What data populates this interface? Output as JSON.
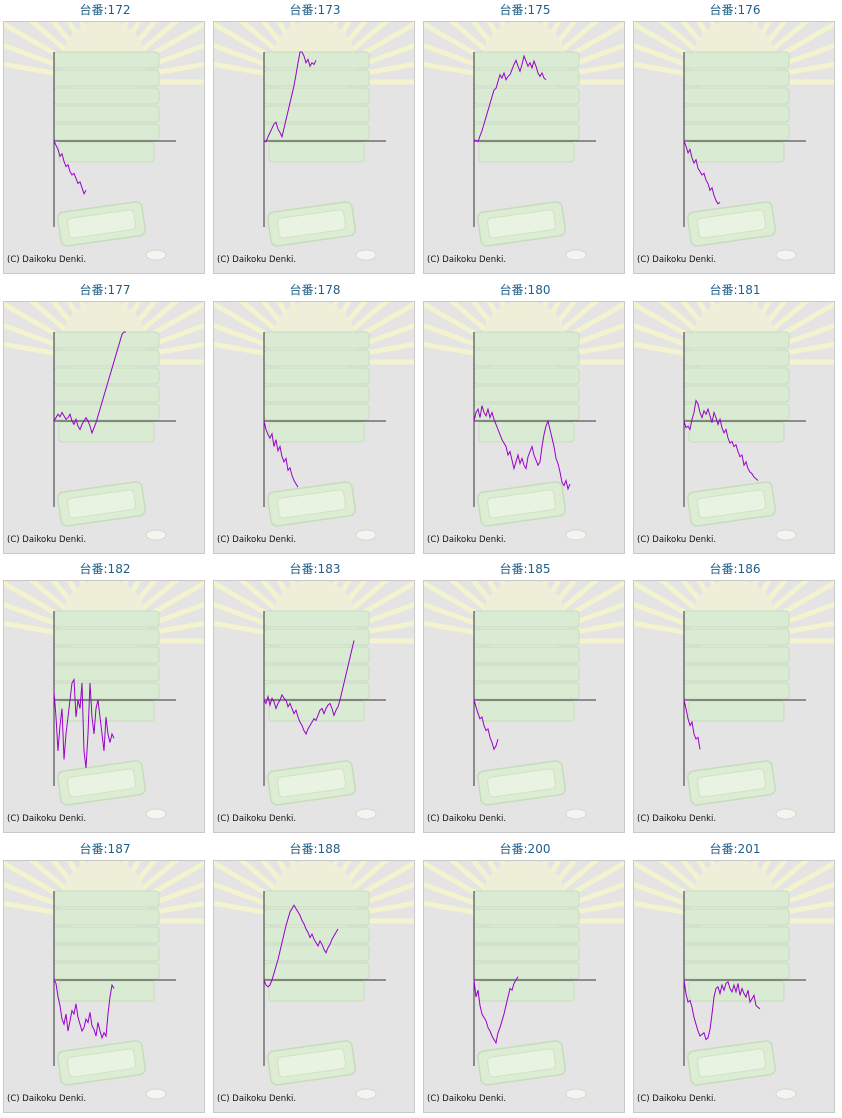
{
  "copyright": "(C) Daikoku Denki.",
  "title_prefix": "台番:",
  "colors": {
    "title": "#1f5f86",
    "line": "#9900cc",
    "axis": "#333333",
    "background": "#e4e4e4"
  },
  "chart_data": [
    {
      "type": "line",
      "title": "台番:172",
      "x": [
        0,
        1,
        2,
        3,
        4,
        5,
        6,
        7,
        8,
        9,
        10,
        11,
        12,
        13,
        14,
        15,
        16
      ],
      "y": [
        0,
        -5,
        -10,
        -18,
        -15,
        -24,
        -30,
        -28,
        -36,
        -40,
        -38,
        -44,
        -50,
        -48,
        -55,
        -62,
        -58
      ]
    },
    {
      "type": "line",
      "title": "台番:173",
      "x": [
        0,
        1,
        2,
        3,
        4,
        5,
        6,
        7,
        8,
        9,
        10,
        11,
        12,
        13,
        14,
        15,
        16,
        17,
        18,
        19,
        20,
        21,
        22,
        23,
        24,
        25,
        26
      ],
      "y": [
        0,
        -1,
        5,
        10,
        15,
        20,
        22,
        14,
        10,
        5,
        15,
        25,
        35,
        45,
        55,
        65,
        78,
        92,
        105,
        108,
        100,
        92,
        96,
        88,
        92,
        90,
        95
      ]
    },
    {
      "type": "line",
      "title": "台番:175",
      "x": [
        0,
        1,
        2,
        3,
        4,
        5,
        6,
        7,
        8,
        9,
        10,
        11,
        12,
        13,
        14,
        15,
        16,
        17,
        18,
        19,
        20,
        21,
        22,
        23,
        24,
        25,
        26,
        27,
        28,
        29,
        30,
        31,
        32,
        33,
        34,
        35,
        36
      ],
      "y": [
        0,
        1,
        -1,
        6,
        12,
        20,
        28,
        36,
        44,
        52,
        60,
        62,
        70,
        78,
        74,
        80,
        72,
        76,
        78,
        84,
        90,
        95,
        88,
        82,
        90,
        100,
        94,
        88,
        92,
        86,
        94,
        88,
        80,
        76,
        80,
        74,
        72
      ]
    },
    {
      "type": "line",
      "title": "台番:176",
      "x": [
        0,
        1,
        2,
        3,
        4,
        5,
        6,
        7,
        8,
        9,
        10,
        11,
        12,
        13,
        14,
        15,
        16,
        17,
        18
      ],
      "y": [
        0,
        -6,
        -14,
        -10,
        -20,
        -26,
        -22,
        -32,
        -36,
        -40,
        -38,
        -46,
        -50,
        -58,
        -55,
        -64,
        -70,
        -74,
        -72
      ]
    },
    {
      "type": "line",
      "title": "台番:177",
      "x": [
        0,
        1,
        2,
        3,
        4,
        5,
        6,
        7,
        8,
        9,
        10,
        11,
        12,
        13,
        14,
        15,
        16,
        17,
        18,
        19,
        20,
        21,
        22,
        23,
        24,
        25,
        26,
        27,
        28,
        29,
        30,
        31,
        32,
        33,
        34,
        35,
        36
      ],
      "y": [
        0,
        4,
        8,
        5,
        10,
        6,
        2,
        4,
        8,
        0,
        -4,
        2,
        -6,
        -10,
        -4,
        0,
        4,
        0,
        -6,
        -14,
        -8,
        -2,
        6,
        14,
        22,
        30,
        38,
        46,
        54,
        62,
        70,
        78,
        86,
        94,
        102,
        108,
        112
      ]
    },
    {
      "type": "line",
      "title": "台番:178",
      "x": [
        0,
        1,
        2,
        3,
        4,
        5,
        6,
        7,
        8,
        9,
        10,
        11,
        12,
        13,
        14,
        15,
        16,
        17
      ],
      "y": [
        0,
        -10,
        -16,
        -20,
        -15,
        -30,
        -22,
        -35,
        -30,
        -42,
        -48,
        -44,
        -58,
        -55,
        -64,
        -70,
        -74,
        -78
      ]
    },
    {
      "type": "line",
      "title": "台番:180",
      "x": [
        0,
        1,
        2,
        3,
        4,
        5,
        6,
        7,
        8,
        9,
        10,
        11,
        12,
        13,
        14,
        15,
        16,
        17,
        18,
        19,
        20,
        21,
        22,
        23,
        24,
        25,
        26,
        27,
        28,
        29,
        30,
        31,
        32,
        33,
        34,
        35,
        36,
        37,
        38,
        39,
        40,
        41,
        42,
        43,
        44,
        45,
        46,
        47,
        48
      ],
      "y": [
        0,
        10,
        14,
        4,
        18,
        10,
        6,
        14,
        4,
        10,
        2,
        -4,
        -10,
        -16,
        -22,
        -26,
        -30,
        -40,
        -36,
        -46,
        -56,
        -48,
        -40,
        -50,
        -44,
        -52,
        -56,
        -42,
        -36,
        -30,
        -40,
        -46,
        -52,
        -48,
        -30,
        -16,
        -6,
        0,
        -10,
        -20,
        -30,
        -44,
        -50,
        -60,
        -72,
        -76,
        -70,
        -80,
        -74
      ]
    },
    {
      "type": "line",
      "title": "台番:181",
      "x": [
        0,
        1,
        2,
        3,
        4,
        5,
        6,
        7,
        8,
        9,
        10,
        11,
        12,
        13,
        14,
        15,
        16,
        17,
        18,
        19,
        20,
        21,
        22,
        23,
        24,
        25,
        26,
        27,
        28,
        29,
        30,
        31,
        32,
        33,
        34,
        35,
        36,
        37
      ],
      "y": [
        0,
        -8,
        -6,
        -10,
        2,
        10,
        24,
        20,
        10,
        4,
        12,
        8,
        14,
        6,
        -2,
        10,
        4,
        -4,
        2,
        -8,
        -14,
        -10,
        -20,
        -26,
        -24,
        -30,
        -28,
        -36,
        -42,
        -40,
        -52,
        -48,
        -56,
        -60,
        -62,
        -66,
        -68,
        -70
      ]
    },
    {
      "type": "line",
      "title": "台番:182",
      "x": [
        0,
        1,
        2,
        3,
        4,
        5,
        6,
        7,
        8,
        9,
        10,
        11,
        12,
        13,
        14,
        15,
        16,
        17,
        18,
        19,
        20,
        21,
        22,
        23,
        24,
        25,
        26,
        27,
        28,
        29,
        30
      ],
      "y": [
        10,
        -20,
        -60,
        -30,
        -10,
        -70,
        -40,
        -20,
        0,
        20,
        24,
        -20,
        0,
        -10,
        20,
        -60,
        -80,
        -40,
        20,
        -20,
        -40,
        -10,
        0,
        -20,
        -40,
        -60,
        -20,
        -40,
        -50,
        -40,
        -45
      ]
    },
    {
      "type": "line",
      "title": "台番:183",
      "x": [
        0,
        1,
        2,
        3,
        4,
        5,
        6,
        7,
        8,
        9,
        10,
        11,
        12,
        13,
        14,
        15,
        16,
        17,
        18,
        19,
        20,
        21,
        22,
        23,
        24,
        25,
        26,
        27,
        28,
        29,
        30,
        31,
        32,
        33,
        34,
        35,
        36,
        37,
        38,
        39,
        40,
        41,
        42,
        43,
        44,
        45
      ],
      "y": [
        0,
        -4,
        4,
        -6,
        2,
        -2,
        -10,
        -4,
        0,
        6,
        2,
        0,
        -8,
        -4,
        -10,
        -16,
        -12,
        -20,
        -26,
        -30,
        -36,
        -40,
        -34,
        -30,
        -26,
        -22,
        -24,
        -18,
        -12,
        -10,
        -16,
        -10,
        -6,
        -4,
        -10,
        -18,
        -12,
        -8,
        0,
        10,
        20,
        30,
        40,
        50,
        60,
        70
      ]
    },
    {
      "type": "line",
      "title": "台番:185",
      "x": [
        0,
        1,
        2,
        3,
        4,
        5,
        6,
        7,
        8,
        9,
        10,
        11,
        12
      ],
      "y": [
        0,
        -8,
        -16,
        -22,
        -20,
        -30,
        -36,
        -34,
        -44,
        -50,
        -58,
        -54,
        -46
      ]
    },
    {
      "type": "line",
      "title": "台番:186",
      "x": [
        0,
        1,
        2,
        3,
        4,
        5,
        6,
        7,
        8
      ],
      "y": [
        0,
        -10,
        -22,
        -30,
        -26,
        -40,
        -46,
        -44,
        -58
      ]
    },
    {
      "type": "line",
      "title": "台番:187",
      "x": [
        0,
        1,
        2,
        3,
        4,
        5,
        6,
        7,
        8,
        9,
        10,
        11,
        12,
        13,
        14,
        15,
        16,
        17,
        18,
        19,
        20,
        21,
        22,
        23,
        24,
        25,
        26,
        27,
        28,
        29,
        30
      ],
      "y": [
        0,
        -4,
        -20,
        -30,
        -46,
        -52,
        -40,
        -60,
        -48,
        -36,
        -40,
        -28,
        -44,
        -52,
        -60,
        -56,
        -46,
        -50,
        -38,
        -54,
        -58,
        -66,
        -50,
        -60,
        -68,
        -62,
        -66,
        -40,
        -20,
        -6,
        -10
      ]
    },
    {
      "type": "line",
      "title": "台番:188",
      "x": [
        0,
        1,
        2,
        3,
        4,
        5,
        6,
        7,
        8,
        9,
        10,
        11,
        12,
        13,
        14,
        15,
        16,
        17,
        18,
        19,
        20,
        21,
        22,
        23,
        24,
        25,
        26,
        27,
        28,
        29,
        30,
        31,
        32,
        33,
        34,
        35,
        36,
        37
      ],
      "y": [
        0,
        -6,
        -8,
        -6,
        0,
        8,
        16,
        24,
        34,
        44,
        54,
        64,
        72,
        80,
        84,
        88,
        84,
        80,
        76,
        70,
        66,
        60,
        56,
        50,
        54,
        48,
        44,
        40,
        46,
        42,
        36,
        32,
        38,
        42,
        48,
        52,
        56,
        60
      ]
    },
    {
      "type": "line",
      "title": "台番:200",
      "x": [
        0,
        1,
        2,
        3,
        4,
        5,
        6,
        7,
        8,
        9,
        10,
        11,
        12,
        13,
        14,
        15,
        16,
        17,
        18,
        19,
        20,
        21,
        22
      ],
      "y": [
        0,
        -20,
        -12,
        -30,
        -40,
        -44,
        -48,
        -56,
        -60,
        -66,
        -70,
        -74,
        -62,
        -56,
        -48,
        -40,
        -30,
        -20,
        -10,
        -12,
        -4,
        0,
        4
      ]
    },
    {
      "type": "line",
      "title": "台番:201",
      "x": [
        0,
        1,
        2,
        3,
        4,
        5,
        6,
        7,
        8,
        9,
        10,
        11,
        12,
        13,
        14,
        15,
        16,
        17,
        18,
        19,
        20,
        21,
        22,
        23,
        24,
        25,
        26,
        27,
        28,
        29,
        30,
        31,
        32,
        33,
        34,
        35,
        36,
        37,
        38
      ],
      "y": [
        0,
        -16,
        -26,
        -24,
        -32,
        -44,
        -52,
        -60,
        -66,
        -64,
        -62,
        -70,
        -68,
        -58,
        -40,
        -20,
        -10,
        -8,
        -16,
        -6,
        -12,
        -4,
        -2,
        -10,
        -14,
        -6,
        -14,
        -4,
        -18,
        -10,
        -16,
        -20,
        -12,
        -26,
        -22,
        -18,
        -30,
        -32,
        -34
      ]
    }
  ]
}
